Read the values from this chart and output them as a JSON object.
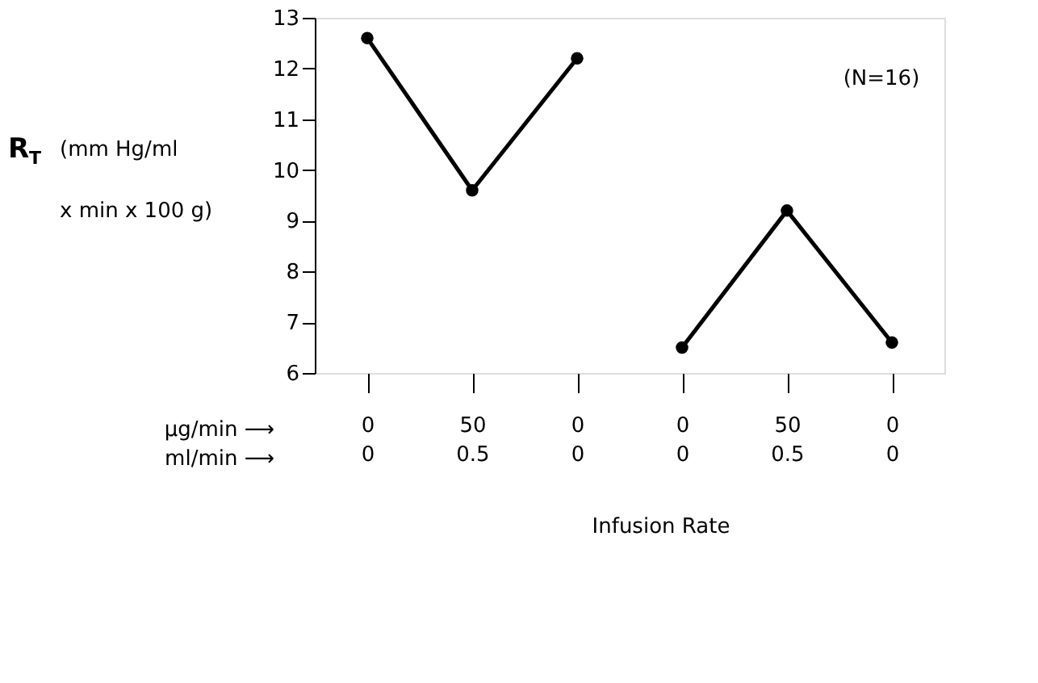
{
  "chart_data": {
    "type": "line",
    "categories": [
      "0\n0",
      "50\n0.5",
      "0\n0",
      "0\n0",
      "50\n0.5",
      "0\n0"
    ],
    "series": [
      {
        "color": "#000000",
        "values": [
          12.6,
          9.6,
          12.2,
          null,
          null,
          null
        ]
      },
      {
        "color": "#000000",
        "values": [
          null,
          null,
          null,
          6.5,
          9.2,
          6.6
        ]
      }
    ],
    "ylabel": "R$_{T}$ (mm Hg/ml\nx min x 100 g)",
    "xlabel": "Infusion Rate",
    "annotations": [
      "(N=16)",
      "µg/min ⟶",
      "ml/min ⟶"
    ],
    "ylim": [
      6,
      13
    ],
    "yticks": [
      6,
      7,
      8,
      9,
      10,
      11,
      12,
      13
    ],
    "marker": "circle",
    "line_style": "solid",
    "grid": false
  }
}
